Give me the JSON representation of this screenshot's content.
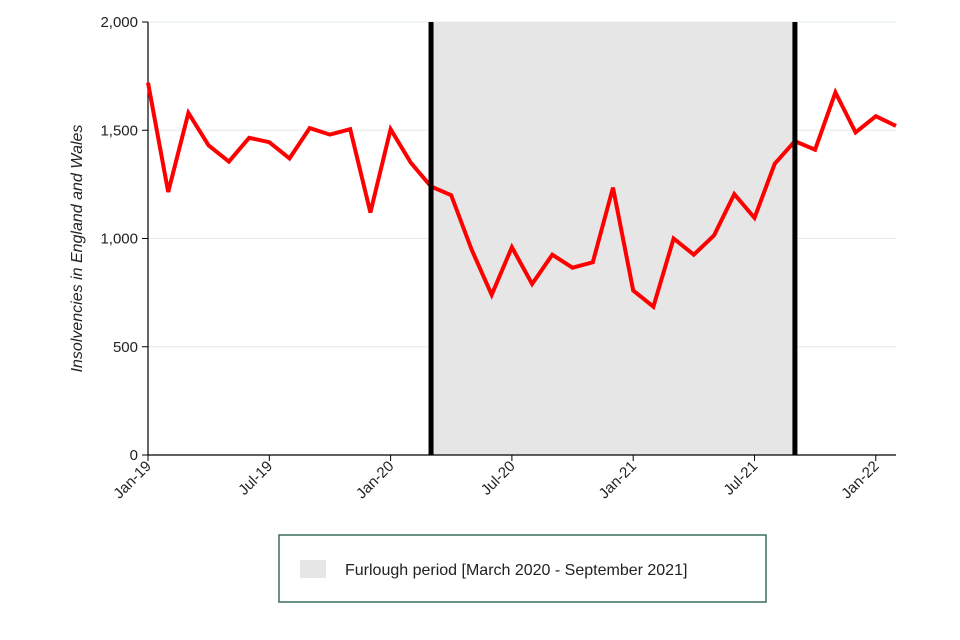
{
  "chart_data": {
    "type": "line",
    "ylabel": "Insolvencies in England and Wales",
    "xlabel": "",
    "ylim": [
      0,
      2000
    ],
    "yticks": [
      0,
      500,
      1000,
      1500,
      2000
    ],
    "ytick_labels": [
      "0",
      "500",
      "1,000",
      "1,500",
      "2,000"
    ],
    "grid": "horizontal",
    "xticks": [
      {
        "index": 0,
        "label": "Jan-19"
      },
      {
        "index": 6,
        "label": "Jul-19"
      },
      {
        "index": 12,
        "label": "Jan-20"
      },
      {
        "index": 18,
        "label": "Jul-20"
      },
      {
        "index": 24,
        "label": "Jan-21"
      },
      {
        "index": 30,
        "label": "Jul-21"
      },
      {
        "index": 36,
        "label": "Jan-22"
      }
    ],
    "x": [
      "Jan-19",
      "Feb-19",
      "Mar-19",
      "Apr-19",
      "May-19",
      "Jun-19",
      "Jul-19",
      "Aug-19",
      "Sep-19",
      "Oct-19",
      "Nov-19",
      "Dec-19",
      "Jan-20",
      "Feb-20",
      "Mar-20",
      "Apr-20",
      "May-20",
      "Jun-20",
      "Jul-20",
      "Aug-20",
      "Sep-20",
      "Oct-20",
      "Nov-20",
      "Dec-20",
      "Jan-21",
      "Feb-21",
      "Mar-21",
      "Apr-21",
      "May-21",
      "Jun-21",
      "Jul-21",
      "Aug-21",
      "Sep-21",
      "Oct-21",
      "Nov-21",
      "Dec-21",
      "Jan-22",
      "Feb-22"
    ],
    "series": [
      {
        "color": "#ff0000",
        "values": [
          1720,
          1215,
          1580,
          1430,
          1355,
          1465,
          1445,
          1370,
          1510,
          1480,
          1505,
          1120,
          1505,
          1350,
          1240,
          1200,
          950,
          740,
          960,
          790,
          925,
          865,
          890,
          1235,
          760,
          685,
          1000,
          925,
          1015,
          1205,
          1095,
          1345,
          1450,
          1410,
          1675,
          1490,
          1565,
          1520
        ]
      }
    ],
    "shaded_region": {
      "start_index": 14,
      "end_index": 32,
      "color": "#e6e6e6"
    },
    "vertical_lines": [
      14,
      32
    ],
    "legend": {
      "label": "Furlough period [March 2020 - September 2021]",
      "swatch_color": "#e6e6e6",
      "border_color": "#3b6e5f",
      "placement": "bottom-center"
    }
  }
}
